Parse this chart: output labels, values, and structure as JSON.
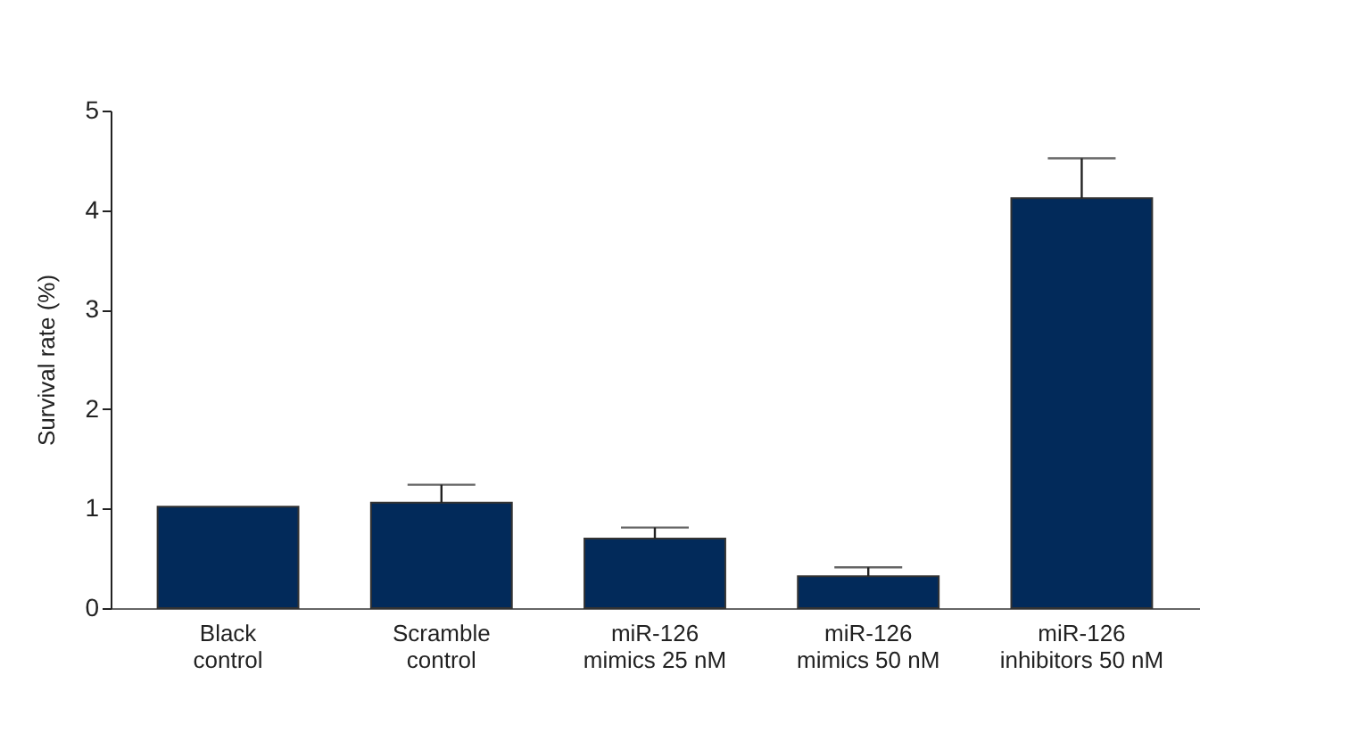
{
  "chart_data": {
    "type": "bar",
    "ylabel": "Survival rate (%)",
    "categories": [
      "Black\ncontrol",
      "Scramble\ncontrol",
      "miR-126\nmimics 25 nM",
      "miR-126\nmimics 50 nM",
      "miR-126\ninhibitors 50 nM"
    ],
    "values": [
      1.02,
      1.06,
      0.7,
      0.32,
      4.12
    ],
    "errors": [
      null,
      0.18,
      0.11,
      0.09,
      0.4
    ],
    "color": "#022a5a",
    "ylim": [
      0,
      5
    ],
    "yticks": [
      0,
      1,
      2,
      3,
      4,
      5
    ],
    "grid": false
  }
}
